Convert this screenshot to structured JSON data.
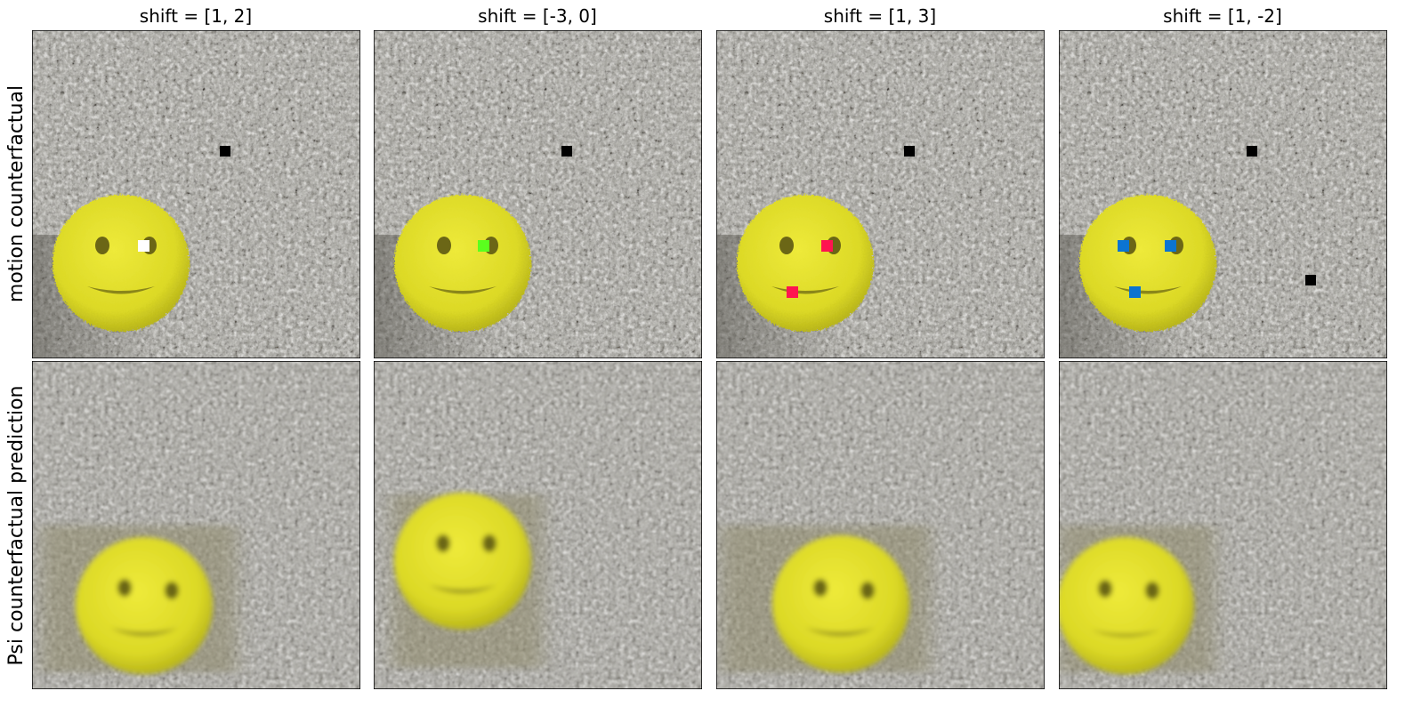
{
  "column_titles": [
    "shift = [1, 2]",
    "shift = [-3, 0]",
    "shift = [1, 3]",
    "shift = [1, -2]"
  ],
  "row_labels": [
    "motion counterfactual",
    "Psi counterfactual prediction"
  ],
  "colors": {
    "background": "#ffffff",
    "granite": "#9b9a93",
    "sponge": "#e1de26",
    "sponge_dark": "#b3b018",
    "marker_black": "#000000",
    "marker_white": "#ffffff",
    "marker_green": "#5aff1e",
    "marker_red": "#ff1450",
    "marker_blue": "#0b74d1",
    "frame": "#000000"
  },
  "panels": [
    {
      "row": 0,
      "col": 0,
      "kind": "sparse-frame",
      "markers": [
        "white",
        "black"
      ]
    },
    {
      "row": 0,
      "col": 1,
      "kind": "sparse-frame",
      "markers": [
        "green",
        "black"
      ]
    },
    {
      "row": 0,
      "col": 2,
      "kind": "sparse-frame",
      "markers": [
        "red",
        "red",
        "black"
      ]
    },
    {
      "row": 0,
      "col": 3,
      "kind": "sparse-frame",
      "markers": [
        "blue",
        "blue",
        "blue",
        "black",
        "black"
      ]
    },
    {
      "row": 1,
      "col": 0,
      "kind": "prediction"
    },
    {
      "row": 1,
      "col": 1,
      "kind": "prediction"
    },
    {
      "row": 1,
      "col": 2,
      "kind": "prediction"
    },
    {
      "row": 1,
      "col": 3,
      "kind": "prediction"
    }
  ]
}
